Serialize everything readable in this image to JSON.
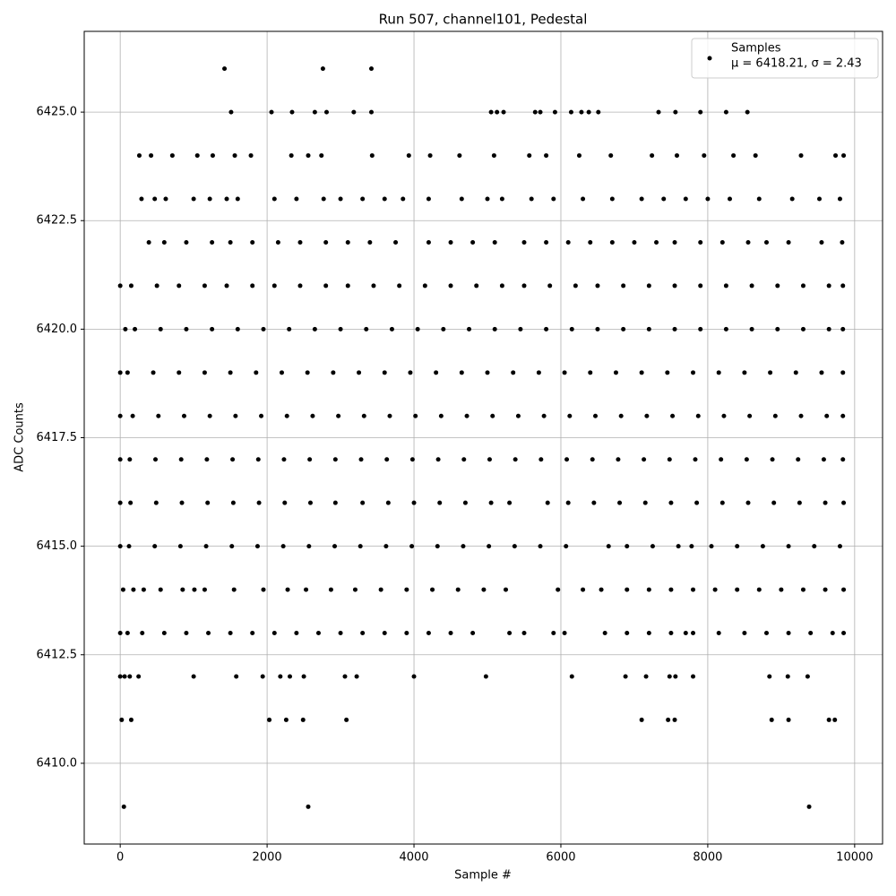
{
  "chart_data": {
    "type": "scatter",
    "title": "Run 507, channel101, Pedestal",
    "x_label": "Sample #",
    "y_label": "ADC Counts",
    "legend_note": "μ = 6418.21, σ = 2.43",
    "legend_position": "upper right",
    "grid": true,
    "xlim": [
      -490,
      10380
    ],
    "xticks": [
      0,
      2000,
      4000,
      6000,
      8000,
      10000
    ],
    "ylim": [
      6408.14,
      6426.86
    ],
    "yticks": [
      {
        "value": 6410,
        "label": "6410.0"
      },
      {
        "value": 6412.5,
        "label": "6412.5"
      },
      {
        "value": 6415,
        "label": "6415.0"
      },
      {
        "value": 6417.5,
        "label": "6417.5"
      },
      {
        "value": 6420,
        "label": "6420.0"
      },
      {
        "value": 6422.5,
        "label": "6422.5"
      },
      {
        "value": 6425,
        "label": "6425.0"
      }
    ],
    "x": [
      1420,
      2760,
      3420,
      1510,
      2060,
      2340,
      2650,
      2810,
      3180,
      3420,
      5050,
      5130,
      5220,
      5650,
      5720,
      5920,
      6140,
      6280,
      6380,
      6510,
      7330,
      7560,
      7900,
      8250,
      8540,
      260,
      420,
      710,
      1050,
      1260,
      1560,
      1780,
      2330,
      2560,
      2740,
      3430,
      3930,
      4220,
      4620,
      5090,
      5570,
      5800,
      6250,
      6680,
      7240,
      7580,
      7950,
      8350,
      8650,
      9270,
      9740,
      9850,
      290,
      470,
      620,
      1000,
      1220,
      1450,
      1600,
      2100,
      2400,
      2770,
      3000,
      3300,
      3600,
      3850,
      4200,
      4650,
      5000,
      5200,
      5600,
      5900,
      6300,
      6700,
      7100,
      7400,
      7700,
      8000,
      8300,
      8700,
      9150,
      9520,
      9800,
      390,
      600,
      900,
      1250,
      1500,
      1800,
      2150,
      2450,
      2800,
      3100,
      3400,
      3750,
      4200,
      4500,
      4800,
      5100,
      5500,
      5800,
      6100,
      6400,
      6700,
      7000,
      7300,
      7550,
      7900,
      8200,
      8550,
      8800,
      9100,
      9550,
      9830,
      0,
      150,
      500,
      800,
      1150,
      1450,
      1800,
      2100,
      2450,
      2800,
      3100,
      3450,
      3800,
      4150,
      4500,
      4850,
      5200,
      5500,
      5850,
      6200,
      6500,
      6850,
      7200,
      7550,
      7900,
      8250,
      8600,
      8950,
      9300,
      9650,
      9840,
      70,
      200,
      550,
      900,
      1250,
      1600,
      1950,
      2300,
      2650,
      3000,
      3350,
      3700,
      4050,
      4400,
      4750,
      5100,
      5450,
      5800,
      6150,
      6500,
      6850,
      7200,
      7550,
      7900,
      8250,
      8600,
      8950,
      9300,
      9650,
      9840,
      0,
      100,
      450,
      800,
      1150,
      1500,
      1850,
      2200,
      2550,
      2900,
      3250,
      3600,
      3950,
      4300,
      4650,
      5000,
      5350,
      5700,
      6050,
      6400,
      6750,
      7100,
      7450,
      7800,
      8150,
      8500,
      8850,
      9200,
      9550,
      9840,
      0,
      170,
      520,
      870,
      1220,
      1570,
      1920,
      2270,
      2620,
      2970,
      3320,
      3670,
      4020,
      4370,
      4720,
      5070,
      5420,
      5770,
      6120,
      6470,
      6820,
      7170,
      7520,
      7870,
      8220,
      8570,
      8920,
      9270,
      9620,
      9840,
      0,
      130,
      480,
      830,
      1180,
      1530,
      1880,
      2230,
      2580,
      2930,
      3280,
      3630,
      3980,
      4330,
      4680,
      5030,
      5380,
      5730,
      6080,
      6430,
      6780,
      7130,
      7480,
      7830,
      8180,
      8530,
      8880,
      9230,
      9580,
      9840,
      0,
      140,
      490,
      840,
      1190,
      1540,
      1890,
      2240,
      2590,
      2930,
      3300,
      3650,
      4000,
      4350,
      4700,
      5050,
      5300,
      5820,
      6100,
      6450,
      6800,
      7150,
      7500,
      7850,
      8200,
      8550,
      8900,
      9250,
      9600,
      9850,
      0,
      120,
      470,
      820,
      1170,
      1520,
      1870,
      2220,
      2570,
      2920,
      3270,
      3620,
      3970,
      4320,
      4670,
      5020,
      5370,
      5720,
      6070,
      6650,
      6900,
      7250,
      7600,
      7780,
      8050,
      8400,
      8750,
      9100,
      9450,
      9800,
      40,
      180,
      320,
      550,
      850,
      1010,
      1150,
      1550,
      1950,
      2280,
      2530,
      2870,
      3200,
      3550,
      3900,
      4250,
      4600,
      4950,
      5250,
      5960,
      6300,
      6550,
      6900,
      7200,
      7500,
      7800,
      8100,
      8400,
      8700,
      9000,
      9300,
      9600,
      9850,
      0,
      100,
      300,
      600,
      900,
      1200,
      1500,
      1800,
      2100,
      2400,
      2700,
      3000,
      3300,
      3600,
      3900,
      4200,
      4500,
      4800,
      5300,
      5500,
      5900,
      6050,
      6600,
      6900,
      7200,
      7500,
      7700,
      7800,
      8150,
      8500,
      8800,
      9100,
      9400,
      9700,
      9850,
      0,
      60,
      130,
      250,
      1000,
      1580,
      1940,
      2180,
      2310,
      2500,
      3060,
      3220,
      4000,
      4980,
      6150,
      6880,
      7160,
      7480,
      7560,
      7800,
      8840,
      9090,
      9360,
      20,
      150,
      2030,
      2260,
      2490,
      3080,
      7100,
      7460,
      7550,
      8870,
      9100,
      9650,
      9730,
      50,
      2560,
      9380
    ],
    "series": [
      {
        "name": "Samples",
        "color": "#000000",
        "values": [
          6426,
          6426,
          6426,
          6425,
          6425,
          6425,
          6425,
          6425,
          6425,
          6425,
          6425,
          6425,
          6425,
          6425,
          6425,
          6425,
          6425,
          6425,
          6425,
          6425,
          6425,
          6425,
          6425,
          6425,
          6425,
          6424,
          6424,
          6424,
          6424,
          6424,
          6424,
          6424,
          6424,
          6424,
          6424,
          6424,
          6424,
          6424,
          6424,
          6424,
          6424,
          6424,
          6424,
          6424,
          6424,
          6424,
          6424,
          6424,
          6424,
          6424,
          6424,
          6424,
          6423,
          6423,
          6423,
          6423,
          6423,
          6423,
          6423,
          6423,
          6423,
          6423,
          6423,
          6423,
          6423,
          6423,
          6423,
          6423,
          6423,
          6423,
          6423,
          6423,
          6423,
          6423,
          6423,
          6423,
          6423,
          6423,
          6423,
          6423,
          6423,
          6423,
          6423,
          6422,
          6422,
          6422,
          6422,
          6422,
          6422,
          6422,
          6422,
          6422,
          6422,
          6422,
          6422,
          6422,
          6422,
          6422,
          6422,
          6422,
          6422,
          6422,
          6422,
          6422,
          6422,
          6422,
          6422,
          6422,
          6422,
          6422,
          6422,
          6422,
          6422,
          6422,
          6421,
          6421,
          6421,
          6421,
          6421,
          6421,
          6421,
          6421,
          6421,
          6421,
          6421,
          6421,
          6421,
          6421,
          6421,
          6421,
          6421,
          6421,
          6421,
          6421,
          6421,
          6421,
          6421,
          6421,
          6421,
          6421,
          6421,
          6421,
          6421,
          6421,
          6421,
          6420,
          6420,
          6420,
          6420,
          6420,
          6420,
          6420,
          6420,
          6420,
          6420,
          6420,
          6420,
          6420,
          6420,
          6420,
          6420,
          6420,
          6420,
          6420,
          6420,
          6420,
          6420,
          6420,
          6420,
          6420,
          6420,
          6420,
          6420,
          6420,
          6420,
          6419,
          6419,
          6419,
          6419,
          6419,
          6419,
          6419,
          6419,
          6419,
          6419,
          6419,
          6419,
          6419,
          6419,
          6419,
          6419,
          6419,
          6419,
          6419,
          6419,
          6419,
          6419,
          6419,
          6419,
          6419,
          6419,
          6419,
          6419,
          6419,
          6419,
          6418,
          6418,
          6418,
          6418,
          6418,
          6418,
          6418,
          6418,
          6418,
          6418,
          6418,
          6418,
          6418,
          6418,
          6418,
          6418,
          6418,
          6418,
          6418,
          6418,
          6418,
          6418,
          6418,
          6418,
          6418,
          6418,
          6418,
          6418,
          6418,
          6418,
          6417,
          6417,
          6417,
          6417,
          6417,
          6417,
          6417,
          6417,
          6417,
          6417,
          6417,
          6417,
          6417,
          6417,
          6417,
          6417,
          6417,
          6417,
          6417,
          6417,
          6417,
          6417,
          6417,
          6417,
          6417,
          6417,
          6417,
          6417,
          6417,
          6417,
          6416,
          6416,
          6416,
          6416,
          6416,
          6416,
          6416,
          6416,
          6416,
          6416,
          6416,
          6416,
          6416,
          6416,
          6416,
          6416,
          6416,
          6416,
          6416,
          6416,
          6416,
          6416,
          6416,
          6416,
          6416,
          6416,
          6416,
          6416,
          6416,
          6416,
          6415,
          6415,
          6415,
          6415,
          6415,
          6415,
          6415,
          6415,
          6415,
          6415,
          6415,
          6415,
          6415,
          6415,
          6415,
          6415,
          6415,
          6415,
          6415,
          6415,
          6415,
          6415,
          6415,
          6415,
          6415,
          6415,
          6415,
          6415,
          6415,
          6415,
          6414,
          6414,
          6414,
          6414,
          6414,
          6414,
          6414,
          6414,
          6414,
          6414,
          6414,
          6414,
          6414,
          6414,
          6414,
          6414,
          6414,
          6414,
          6414,
          6414,
          6414,
          6414,
          6414,
          6414,
          6414,
          6414,
          6414,
          6414,
          6414,
          6414,
          6414,
          6414,
          6414,
          6413,
          6413,
          6413,
          6413,
          6413,
          6413,
          6413,
          6413,
          6413,
          6413,
          6413,
          6413,
          6413,
          6413,
          6413,
          6413,
          6413,
          6413,
          6413,
          6413,
          6413,
          6413,
          6413,
          6413,
          6413,
          6413,
          6413,
          6413,
          6413,
          6413,
          6413,
          6413,
          6413,
          6413,
          6413,
          6412,
          6412,
          6412,
          6412,
          6412,
          6412,
          6412,
          6412,
          6412,
          6412,
          6412,
          6412,
          6412,
          6412,
          6412,
          6412,
          6412,
          6412,
          6412,
          6412,
          6412,
          6412,
          6412,
          6411,
          6411,
          6411,
          6411,
          6411,
          6411,
          6411,
          6411,
          6411,
          6411,
          6411,
          6411,
          6411,
          6409,
          6409,
          6409
        ]
      }
    ]
  }
}
